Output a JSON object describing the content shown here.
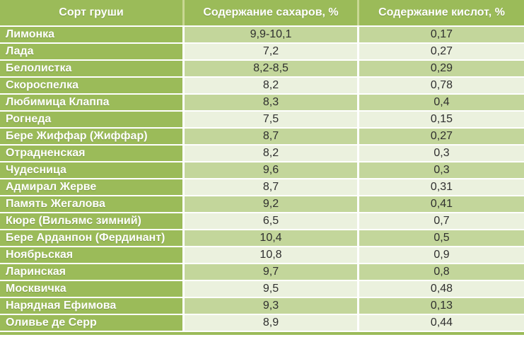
{
  "colors": {
    "accent_olive": "#9bbb59",
    "band_dark": "#c3d69b",
    "band_light": "#ebf1de",
    "header_text": "#ffffff",
    "body_text": "#2f2f2f",
    "grid_white": "#ffffff"
  },
  "table": {
    "headers": [
      "Сорт груши",
      "Содержание сахаров, %",
      "Содержание кислот, %"
    ],
    "rows": [
      {
        "name": "Лимонка",
        "sugar": "9,9-10,1",
        "acid": "0,17"
      },
      {
        "name": "Лада",
        "sugar": "7,2",
        "acid": "0,27"
      },
      {
        "name": "Белолистка",
        "sugar": "8,2-8,5",
        "acid": "0,29"
      },
      {
        "name": "Скороспелка",
        "sugar": "8,2",
        "acid": "0,78"
      },
      {
        "name": "Любимица Клаппа",
        "sugar": "8,3",
        "acid": "0,4"
      },
      {
        "name": "Рогнеда",
        "sugar": "7,5",
        "acid": "0,15"
      },
      {
        "name": "Бере Жиффар (Жиффар)",
        "sugar": "8,7",
        "acid": "0,27"
      },
      {
        "name": "Отрадненская",
        "sugar": "8,2",
        "acid": "0,3"
      },
      {
        "name": "Чудесница",
        "sugar": "9,6",
        "acid": "0,3"
      },
      {
        "name": "Адмирал Жерве",
        "sugar": "8,7",
        "acid": "0,31"
      },
      {
        "name": "Память Жегалова",
        "sugar": "9,2",
        "acid": "0,41"
      },
      {
        "name": "Кюре (Вильямс зимний)",
        "sugar": "6,5",
        "acid": "0,7"
      },
      {
        "name": "Бере Арданпон (Фердинант)",
        "sugar": "10,4",
        "acid": "0,5"
      },
      {
        "name": "Ноябрьская",
        "sugar": "10,8",
        "acid": "0,9"
      },
      {
        "name": "Ларинская",
        "sugar": "9,7",
        "acid": "0,8"
      },
      {
        "name": "Москвичка",
        "sugar": "9,5",
        "acid": "0,48"
      },
      {
        "name": "Нарядная Ефимова",
        "sugar": "9,3",
        "acid": "0,13"
      },
      {
        "name": "Оливье де Серр",
        "sugar": "8,9",
        "acid": "0,44"
      }
    ]
  },
  "chart_data": {
    "type": "table",
    "title": "",
    "columns": [
      "Сорт груши",
      "Содержание сахаров, %",
      "Содержание кислот, %"
    ],
    "rows": [
      [
        "Лимонка",
        "9,9-10,1",
        "0,17"
      ],
      [
        "Лада",
        "7,2",
        "0,27"
      ],
      [
        "Белолистка",
        "8,2-8,5",
        "0,29"
      ],
      [
        "Скороспелка",
        "8,2",
        "0,78"
      ],
      [
        "Любимица Клаппа",
        "8,3",
        "0,4"
      ],
      [
        "Рогнеда",
        "7,5",
        "0,15"
      ],
      [
        "Бере Жиффар (Жиффар)",
        "8,7",
        "0,27"
      ],
      [
        "Отрадненская",
        "8,2",
        "0,3"
      ],
      [
        "Чудесница",
        "9,6",
        "0,3"
      ],
      [
        "Адмирал Жерве",
        "8,7",
        "0,31"
      ],
      [
        "Память Жегалова",
        "9,2",
        "0,41"
      ],
      [
        "Кюре (Вильямс зимний)",
        "6,5",
        "0,7"
      ],
      [
        "Бере Арданпон (Фердинант)",
        "10,4",
        "0,5"
      ],
      [
        "Ноябрьская",
        "10,8",
        "0,9"
      ],
      [
        "Ларинская",
        "9,7",
        "0,8"
      ],
      [
        "Москвичка",
        "9,5",
        "0,48"
      ],
      [
        "Нарядная Ефимова",
        "9,3",
        "0,13"
      ],
      [
        "Оливье де Серр",
        "8,9",
        "0,44"
      ]
    ],
    "layout": {
      "banded_rows": true,
      "header_fill": "#9bbb59",
      "legend": "none",
      "grid": "white-lines"
    }
  }
}
